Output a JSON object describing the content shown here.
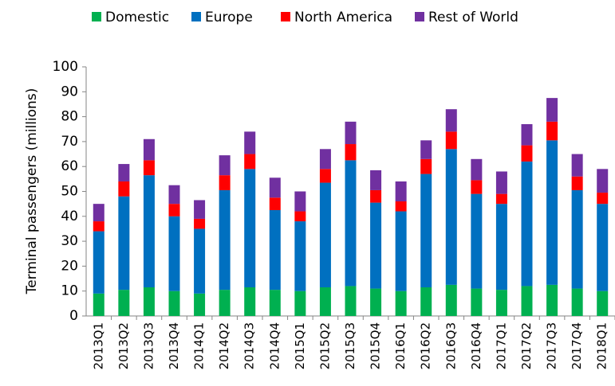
{
  "chart_data": {
    "type": "stacked-bar",
    "ylabel": "Terminal passengers (millions)",
    "categories": [
      "2013Q1",
      "2013Q2",
      "2013Q3",
      "2013Q4",
      "2014Q1",
      "2014Q2",
      "2014Q3",
      "2014Q4",
      "2015Q1",
      "2015Q2",
      "2015Q3",
      "2015Q4",
      "2016Q1",
      "2016Q2",
      "2016Q3",
      "2016Q4",
      "2017Q1",
      "2017Q2",
      "2017Q3",
      "2017Q4",
      "2018Q1"
    ],
    "series": [
      {
        "name": "Domestic",
        "color": "#00b050",
        "values": [
          9,
          10.5,
          11.5,
          10,
          9,
          10.5,
          11.5,
          10.5,
          10,
          11.5,
          12,
          11,
          10,
          11.5,
          12.5,
          11,
          10.5,
          12,
          12.5,
          11,
          10
        ]
      },
      {
        "name": "Europe",
        "color": "#0070c0",
        "values": [
          25,
          37.5,
          45,
          30,
          26,
          40,
          47.5,
          32,
          28,
          42,
          50.5,
          34.5,
          32,
          45.5,
          54.5,
          38,
          34.5,
          50,
          58,
          39.5,
          35
        ]
      },
      {
        "name": "North America",
        "color": "#ff0000",
        "values": [
          4,
          6,
          6,
          5,
          4,
          6,
          6,
          5,
          4,
          5.5,
          6.5,
          5,
          4,
          6,
          7,
          5.5,
          4,
          6.5,
          7.5,
          5.5,
          4.5
        ]
      },
      {
        "name": "Rest of World",
        "color": "#7030a0",
        "values": [
          7,
          7,
          8.5,
          7.5,
          7.5,
          8,
          9,
          8,
          8,
          8,
          9,
          8,
          8,
          7.5,
          9,
          8.5,
          9,
          8.5,
          9.5,
          9,
          9.5
        ]
      }
    ],
    "ylim": [
      0,
      100
    ],
    "yticks": [
      0,
      10,
      20,
      30,
      40,
      50,
      60,
      70,
      80,
      90,
      100
    ],
    "grid": false,
    "legend": "top"
  }
}
